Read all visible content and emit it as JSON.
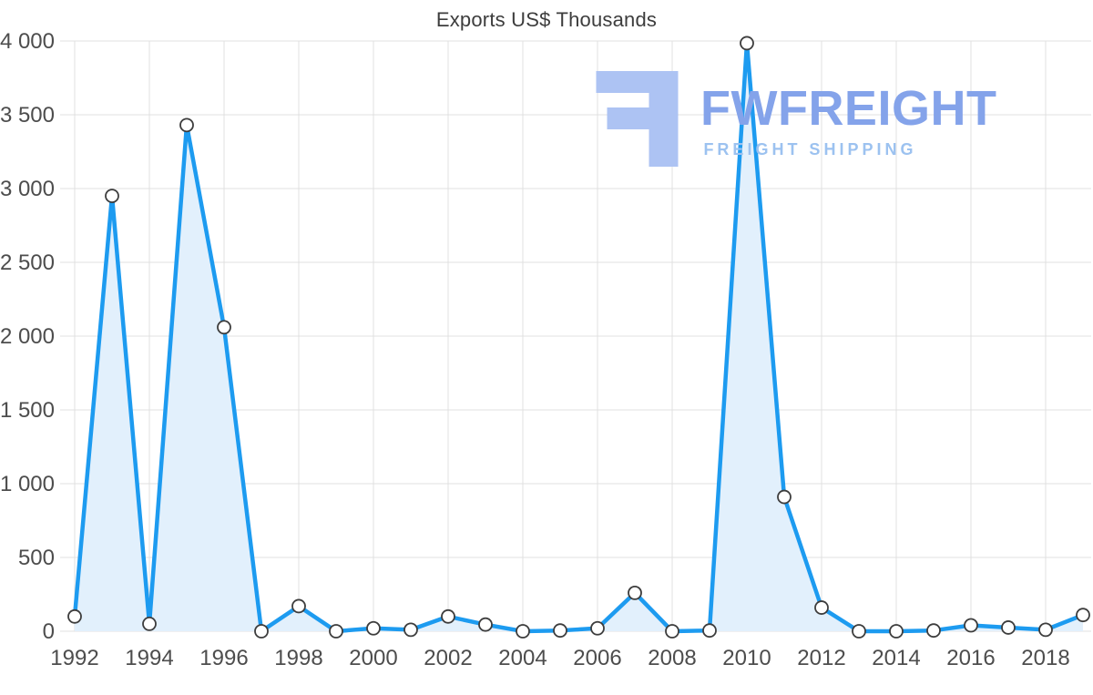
{
  "title": "Exports US$ Thousands",
  "watermark": {
    "name": "FWFREIGHT",
    "tagline": "FREIGHT SHIPPING",
    "text_color": "#84a3ea",
    "tagline_color": "#9cc2f0",
    "icon_color": "#adc3f3"
  },
  "chart_data": {
    "type": "area",
    "title": "Exports US$ Thousands",
    "series_name": "Exports US$ Thousands",
    "x": [
      1992,
      1993,
      1994,
      1995,
      1996,
      1997,
      1998,
      1999,
      2000,
      2001,
      2002,
      2003,
      2004,
      2005,
      2006,
      2007,
      2008,
      2009,
      2010,
      2011,
      2012,
      2013,
      2014,
      2015,
      2016,
      2017,
      2018,
      2019
    ],
    "values": [
      100,
      2950,
      50,
      3430,
      2060,
      0,
      170,
      0,
      20,
      10,
      100,
      45,
      0,
      5,
      20,
      260,
      0,
      5,
      3985,
      910,
      160,
      0,
      0,
      5,
      40,
      25,
      10,
      110
    ],
    "xlabel": "",
    "ylabel": "",
    "ylim": [
      0,
      4000
    ],
    "y_ticks": [
      0,
      500,
      1000,
      1500,
      2000,
      2500,
      3000,
      3500,
      4000
    ],
    "y_tick_labels": [
      "0",
      "500",
      "1 000",
      "1 500",
      "2 000",
      "2 500",
      "3 000",
      "3 500",
      "4 000"
    ],
    "x_tick_labels": [
      "1992",
      "1994",
      "1996",
      "1998",
      "2000",
      "2002",
      "2004",
      "2006",
      "2008",
      "2010",
      "2012",
      "2014",
      "2016",
      "2018"
    ],
    "grid": true,
    "legend": "none",
    "colors": {
      "line": "#1d9bf0",
      "fill": "#e2f0fc",
      "marker_fill": "#ffffff",
      "marker_stroke": "#3d3d3d",
      "grid": "#e0e0e0",
      "label": "#4d4d4d",
      "title": "#3d3d3d"
    }
  }
}
